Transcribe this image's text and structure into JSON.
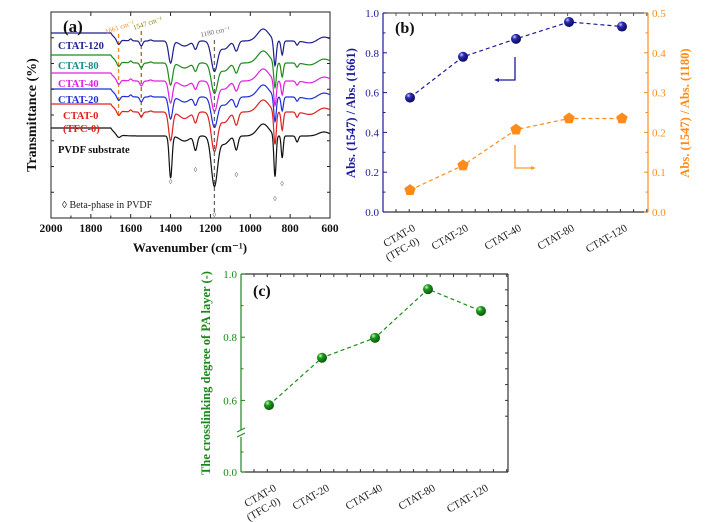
{
  "chart_data": [
    {
      "id": "a",
      "type": "line",
      "panel_label": "(a)",
      "title": "",
      "xlabel": "Wavenumber (cm⁻¹)",
      "ylabel": "Transmittance (%)",
      "xlim": [
        2000,
        600
      ],
      "x_reversed": true,
      "xticks": [
        2000,
        1800,
        1600,
        1400,
        1200,
        1000,
        800,
        600
      ],
      "yticks_labeled": false,
      "series_offset_order": [
        "CTAT-120",
        "CTAT-80",
        "CTAT-40",
        "CTAT-20",
        "CTAT-0 (TFC-0)",
        "PVDF substrate"
      ],
      "series": [
        {
          "name": "CTAT-120",
          "label_lines": [
            "CTAT-120"
          ],
          "color": "#1f1f8f",
          "label_color": "#1f1f8f"
        },
        {
          "name": "CTAT-80",
          "label_lines": [
            "CTAT-80"
          ],
          "color": "#1e8a1e",
          "label_color": "#1a8a8a"
        },
        {
          "name": "CTAT-40",
          "label_lines": [
            "CTAT-40"
          ],
          "color": "#e020e0",
          "label_color": "#e020e0"
        },
        {
          "name": "CTAT-20",
          "label_lines": [
            "CTAT-20"
          ],
          "color": "#1f2fd8",
          "label_color": "#1f2fd8"
        },
        {
          "name": "CTAT-0 (TFC-0)",
          "label_lines": [
            "CTAT-0",
            "(TFC-0)"
          ],
          "color": "#e02020",
          "label_color": "#e02020"
        },
        {
          "name": "PVDF substrate",
          "label_lines": [
            "PVDF substrate"
          ],
          "color": "#111111",
          "label_color": "#111111"
        }
      ],
      "spectral_features": {
        "pa_bands": [
          1661,
          1547
        ],
        "pvdf_bands": [
          1400,
          1180,
          1070,
          876,
          840,
          765
        ],
        "beta_phase_markers": [
          1400,
          1275,
          1180,
          1070,
          876,
          840
        ]
      },
      "annotations": [
        {
          "text": "1661 cm⁻¹",
          "x": 1661,
          "color": "#f08a1e",
          "line": "dashed"
        },
        {
          "text": "1547 cm⁻¹",
          "x": 1547,
          "color": "#8a7a10",
          "line": "dashed"
        },
        {
          "text": "1180 cm⁻¹",
          "x": 1180,
          "color": "#6a6a6a",
          "line": "dashed"
        }
      ],
      "legend_note": "◊ Beta-phase in PVDF",
      "beta_marker": "◊"
    },
    {
      "id": "b",
      "type": "line",
      "panel_label": "(b)",
      "title": "",
      "xlabel": "",
      "categories": [
        "CTAT-0\n(TFC-0)",
        "CTAT-20",
        "CTAT-40",
        "CTAT-80",
        "CTAT-120"
      ],
      "category_lines": [
        [
          "CTAT-0",
          "(TFC-0)"
        ],
        [
          "CTAT-20"
        ],
        [
          "CTAT-40"
        ],
        [
          "CTAT-80"
        ],
        [
          "CTAT-120"
        ]
      ],
      "ylabel": "Abs. (1547) / Abs. (1661)",
      "ylim": [
        0.0,
        1.0
      ],
      "yticks": [
        "0.0",
        "0.2",
        "0.4",
        "0.6",
        "0.8",
        "1.0"
      ],
      "y2label": "Abs. (1547) / Abs. (1180)",
      "y2lim": [
        0.0,
        0.5
      ],
      "y2ticks": [
        "0.0",
        "0.1",
        "0.2",
        "0.3",
        "0.4",
        "0.5"
      ],
      "series": [
        {
          "name": "Abs. (1547) / Abs. (1661)",
          "axis": "left",
          "marker": "circle",
          "color": "#1a1a9a",
          "values": [
            0.575,
            0.78,
            0.87,
            0.955,
            0.932
          ]
        },
        {
          "name": "Abs. (1547) / Abs. (1180)",
          "axis": "right",
          "marker": "pentagon",
          "color": "#ff8c1a",
          "values": [
            0.055,
            0.117,
            0.207,
            0.235,
            0.235
          ]
        }
      ],
      "axis_indicators": [
        {
          "points_to": "left",
          "color": "#1a1a9a"
        },
        {
          "points_to": "right",
          "color": "#ff9933"
        }
      ]
    },
    {
      "id": "c",
      "type": "line",
      "panel_label": "(c)",
      "title": "",
      "xlabel": "",
      "categories": [
        "CTAT-0\n(TFC-0)",
        "CTAT-20",
        "CTAT-40",
        "CTAT-80",
        "CTAT-120"
      ],
      "category_lines": [
        [
          "CTAT-0",
          "(TFC-0)"
        ],
        [
          "CTAT-20"
        ],
        [
          "CTAT-40"
        ],
        [
          "CTAT-80"
        ],
        [
          "CTAT-120"
        ]
      ],
      "ylabel": "The crosslinking degree of PA layer (-)",
      "ylim": [
        0.0,
        1.0
      ],
      "axis_break": [
        0.0,
        0.5
      ],
      "yticks": [
        "0.0",
        "0.6",
        "0.8",
        "1.0"
      ],
      "series": [
        {
          "name": "Crosslinking degree",
          "marker": "circle",
          "color": "#1a8a1a",
          "values": [
            0.585,
            0.735,
            0.798,
            0.952,
            0.883
          ]
        }
      ]
    }
  ]
}
